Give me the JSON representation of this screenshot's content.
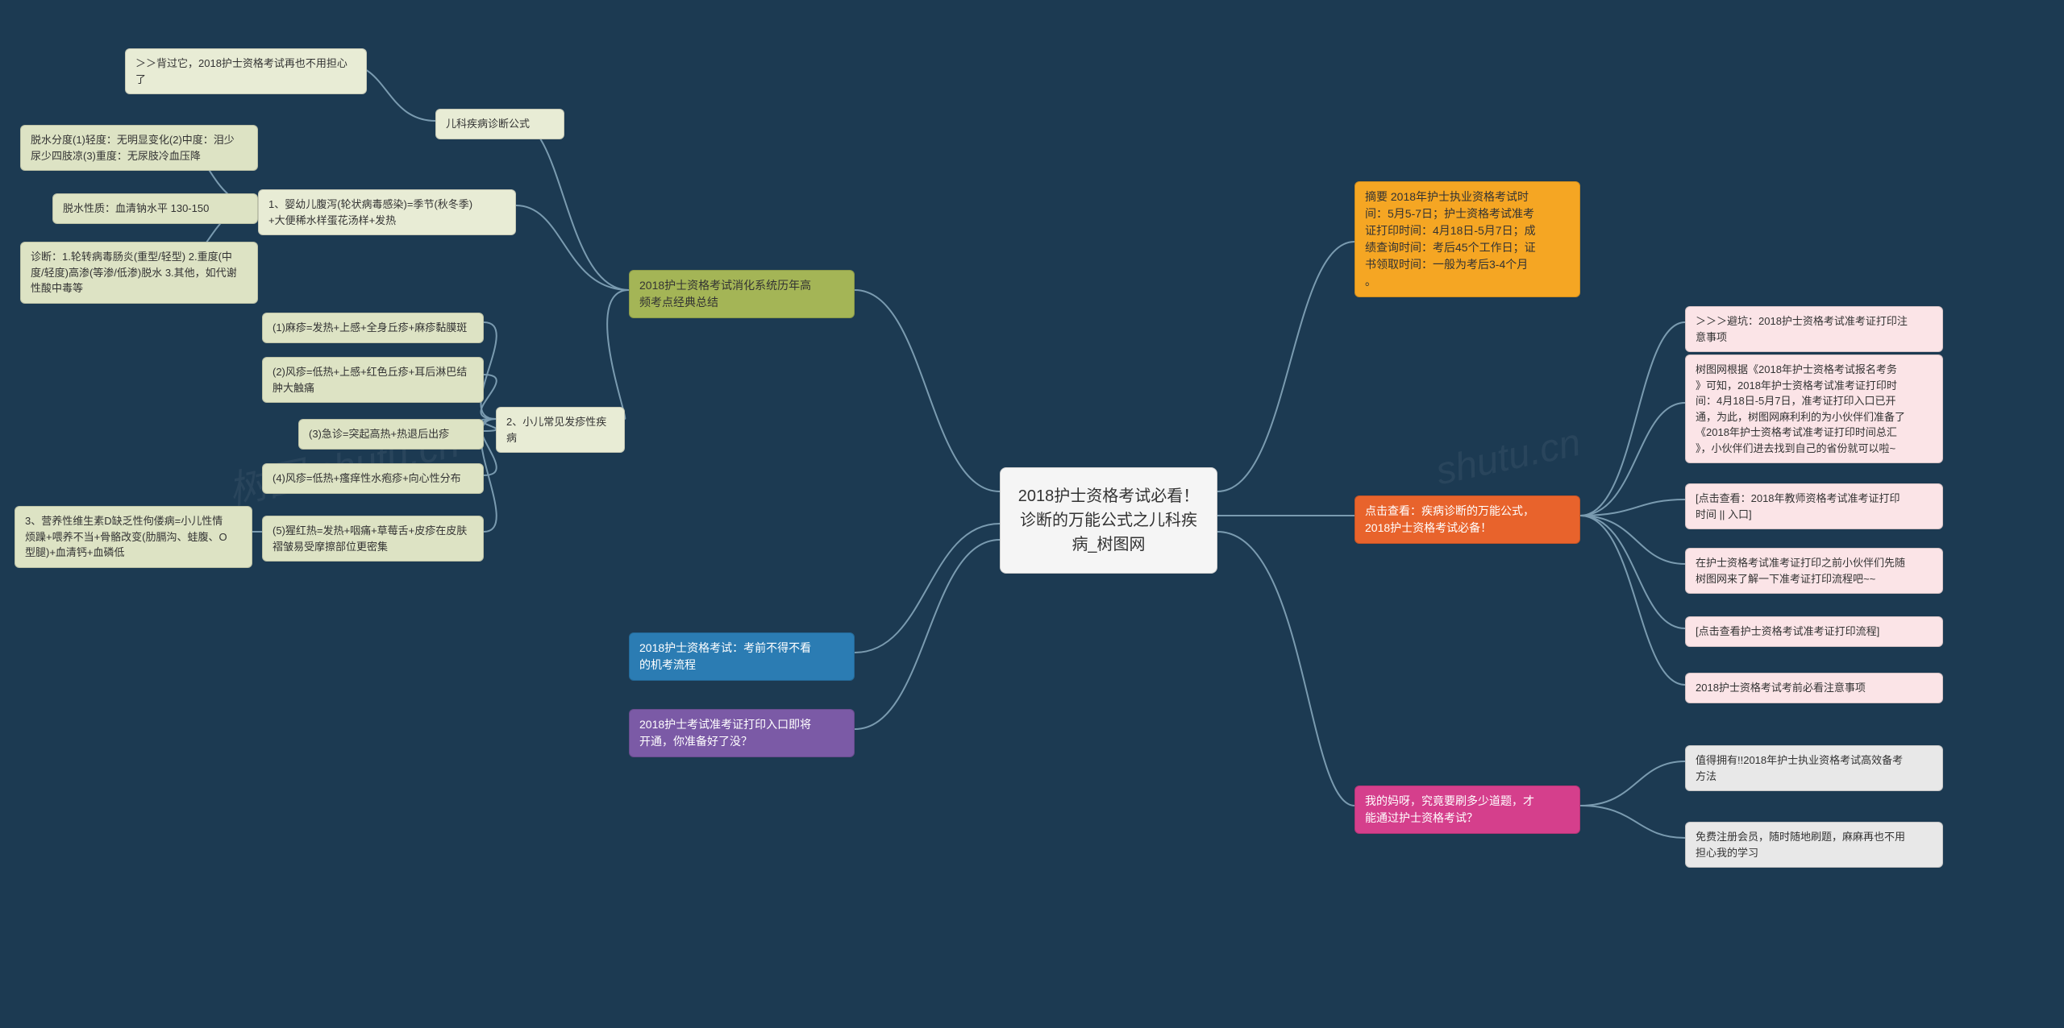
{
  "center": {
    "title": "2018护士资格考试必看！\n诊断的万能公式之儿科疾\n病_树图网"
  },
  "right": {
    "summary": "摘要 2018年护士执业资格考试时\n间：5月5-7日；护士资格考试准考\n证打印时间：4月18日-5月7日；成\n绩查询时间：考后45个工作日；证\n书领取时间：一般为考后3-4个月\n。",
    "cta1": "点击查看：疾病诊断的万能公式，\n2018护士资格考试必备！",
    "cta1_children": [
      "＞＞＞避坑：2018护士资格考试准考证打印注\n意事项",
      "树图网根据《2018年护士资格考试报名考务\n》可知，2018年护士资格考试准考证打印时\n间：4月18日-5月7日，准考证打印入口已开\n通，为此，树图网麻利利的为小伙伴们准备了\n《2018年护士资格考试准考证打印时间总汇\n》，小伙伴们进去找到自己的省份就可以啦~",
      "[点击查看：2018年教师资格考试准考证打印\n时间 || 入口]",
      "在护士资格考试准考证打印之前小伙伴们先随\n树图网来了解一下准考证打印流程吧~~",
      "[点击查看护士资格考试准考证打印流程]",
      "2018护士资格考试考前必看注意事项"
    ],
    "cta2": "我的妈呀，究竟要刷多少道题，才\n能通过护士资格考试？",
    "cta2_children": [
      "值得拥有!!2018年护士执业资格考试高效备考\n方法",
      "免费注册会员，随时随地刷题，麻麻再也不用\n担心我的学习"
    ]
  },
  "left": {
    "l1": "2018护士资格考试消化系统历年高\n频考点经典总结",
    "l1_children": {
      "pediatric": "儿科疾病诊断公式",
      "pediatric_child": "＞＞背过它，2018护士资格考试再也不用担心\n了",
      "infant": "1、婴幼儿腹泻(轮状病毒感染)=季节(秋冬季)\n+大便稀水样蛋花汤样+发热",
      "infant_children": [
        "脱水分度(1)轻度：无明显变化(2)中度：泪少\n尿少四肢凉(3)重度：无尿肢冷血压降",
        "脱水性质：血清钠水平 130-150",
        "诊断：1.轮转病毒肠炎(重型/轻型) 2.重度(中\n度/轻度)高渗(等渗/低渗)脱水 3.其他，如代谢\n性酸中毒等"
      ],
      "rash": "2、小儿常见发疹性疾病",
      "rash_children": [
        "(1)麻疹=发热+上感+全身丘疹+麻疹黏膜斑",
        "(2)风疹=低热+上感+红色丘疹+耳后淋巴结\n肿大触痛",
        "(3)急诊=突起高热+热退后出疹",
        "(4)风疹=低热+瘙痒性水疱疹+向心性分布",
        "(5)猩红热=发热+咽痛+草莓舌+皮疹在皮肤\n褶皱易受摩擦部位更密集"
      ],
      "rash_child5_child": "3、营养性维生素D缺乏性佝偻病=小儿性情\n烦躁+喂养不当+骨骼改变(肋膈沟、蛙腹、O\n型腿)+血清钙+血磷低"
    },
    "l2": "2018护士资格考试：考前不得不看\n的机考流程",
    "l3": "2018护士考试准考证打印入口即将\n开通，你准备好了没？"
  },
  "colors": {
    "bg": "#1c3a52",
    "center": "#f5f5f5",
    "orange": "#f5a623",
    "darkorange": "#e8632c",
    "magenta": "#d53f8c",
    "pink": "#fbe4e7",
    "grey": "#e8e8e8",
    "olive": "#a4b556",
    "blue": "#2b7cb3",
    "purple": "#7b5aa6",
    "lightolive": "#e8ecd5",
    "connector": "#7a9bb0"
  },
  "watermarks": [
    "树图 shutu.cn",
    "shutu.cn"
  ]
}
